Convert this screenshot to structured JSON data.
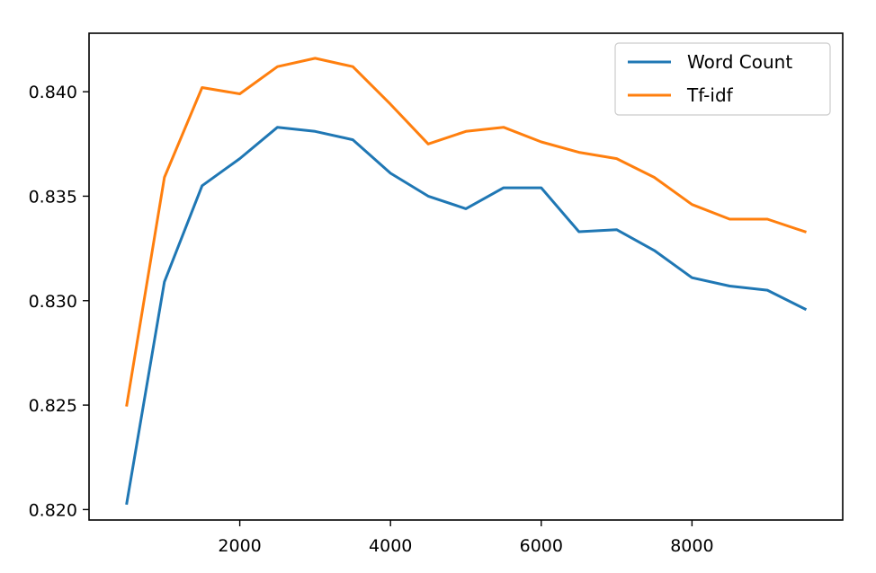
{
  "chart_data": {
    "type": "line",
    "title": "",
    "xlabel": "",
    "ylabel": "",
    "xlim": [
      0,
      10000
    ],
    "ylim": [
      0.8195,
      0.8428
    ],
    "xticks": [
      2000,
      4000,
      6000,
      8000
    ],
    "xtick_labels": [
      "2000",
      "4000",
      "6000",
      "8000"
    ],
    "yticks": [
      0.82,
      0.825,
      0.83,
      0.835,
      0.84
    ],
    "ytick_labels": [
      "0.820",
      "0.825",
      "0.830",
      "0.835",
      "0.840"
    ],
    "grid": false,
    "legend_position": "top-right",
    "x": [
      500,
      1000,
      1500,
      2000,
      2500,
      3000,
      3500,
      4000,
      4500,
      5000,
      5500,
      6000,
      6500,
      7000,
      7500,
      8000,
      8500,
      9000,
      9500
    ],
    "series": [
      {
        "name": "Word Count",
        "color": "#1f77b4",
        "values": [
          0.8203,
          0.8309,
          0.8355,
          0.8368,
          0.8383,
          0.8381,
          0.8377,
          0.8361,
          0.835,
          0.8344,
          0.8354,
          0.8354,
          0.8333,
          0.8334,
          0.8324,
          0.8311,
          0.8307,
          0.8305,
          0.8296
        ]
      },
      {
        "name": "Tf-idf",
        "color": "#ff7f0e",
        "values": [
          0.825,
          0.8359,
          0.8402,
          0.8399,
          0.8412,
          0.8416,
          0.8412,
          0.8394,
          0.8375,
          0.8381,
          0.8383,
          0.8376,
          0.8371,
          0.8368,
          0.8359,
          0.8346,
          0.8339,
          0.8339,
          0.8333
        ]
      }
    ]
  }
}
